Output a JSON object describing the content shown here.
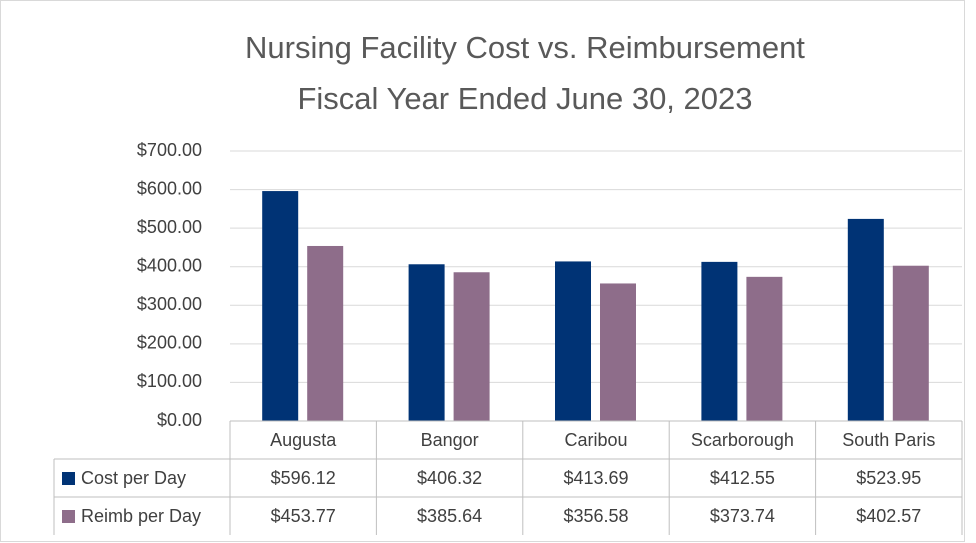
{
  "chart_data": {
    "type": "bar",
    "title": [
      "Nursing Facility Cost vs. Reimbursement",
      "Fiscal Year Ended June 30, 2023"
    ],
    "categories": [
      "Augusta",
      "Bangor",
      "Caribou",
      "Scarborough",
      "South Paris"
    ],
    "series": [
      {
        "name": "Cost per Day",
        "color": "#003375",
        "values": [
          596.12,
          406.32,
          413.69,
          412.55,
          523.95
        ],
        "value_labels": [
          "$596.12",
          "$406.32",
          "$413.69",
          "$412.55",
          "$523.95"
        ]
      },
      {
        "name": "Reimb per Day",
        "color": "#8e6d8a",
        "values": [
          453.77,
          385.64,
          356.58,
          373.74,
          402.57
        ],
        "value_labels": [
          "$453.77",
          "$385.64",
          "$356.58",
          "$373.74",
          "$402.57"
        ]
      }
    ],
    "ylim": [
      0,
      700
    ],
    "yticks": [
      {
        "value": 0,
        "label": "$0.00"
      },
      {
        "value": 100,
        "label": "$100.00"
      },
      {
        "value": 200,
        "label": "$200.00"
      },
      {
        "value": 300,
        "label": "$300.00"
      },
      {
        "value": 400,
        "label": "$400.00"
      },
      {
        "value": 500,
        "label": "$500.00"
      },
      {
        "value": 600,
        "label": "$600.00"
      },
      {
        "value": 700,
        "label": "$700.00"
      }
    ],
    "grid": true
  }
}
